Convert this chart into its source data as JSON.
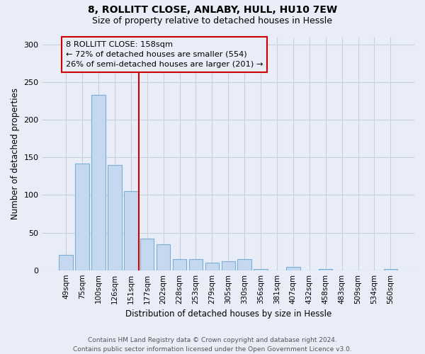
{
  "title1": "8, ROLLITT CLOSE, ANLABY, HULL, HU10 7EW",
  "title2": "Size of property relative to detached houses in Hessle",
  "xlabel": "Distribution of detached houses by size in Hessle",
  "ylabel": "Number of detached properties",
  "bar_labels": [
    "49sqm",
    "75sqm",
    "100sqm",
    "126sqm",
    "151sqm",
    "177sqm",
    "202sqm",
    "228sqm",
    "253sqm",
    "279sqm",
    "305sqm",
    "330sqm",
    "356sqm",
    "381sqm",
    "407sqm",
    "432sqm",
    "458sqm",
    "483sqm",
    "509sqm",
    "534sqm",
    "560sqm"
  ],
  "bar_values": [
    20,
    142,
    233,
    140,
    105,
    42,
    35,
    15,
    15,
    10,
    12,
    15,
    2,
    0,
    4,
    0,
    2,
    0,
    0,
    0,
    2
  ],
  "bar_color": "#c5d8f0",
  "bar_edge_color": "#7bafd4",
  "redline_x": 4.5,
  "annotation_title": "8 ROLLITT CLOSE: 158sqm",
  "annotation_line1": "← 72% of detached houses are smaller (554)",
  "annotation_line2": "26% of semi-detached houses are larger (201) →",
  "ylim": [
    0,
    310
  ],
  "yticks": [
    0,
    50,
    100,
    150,
    200,
    250,
    300
  ],
  "footer1": "Contains HM Land Registry data © Crown copyright and database right 2024.",
  "footer2": "Contains public sector information licensed under the Open Government Licence v3.0.",
  "bg_color": "#e8edf8",
  "plot_bg_color": "#e8edf8",
  "grid_color": "#c8cfe0"
}
